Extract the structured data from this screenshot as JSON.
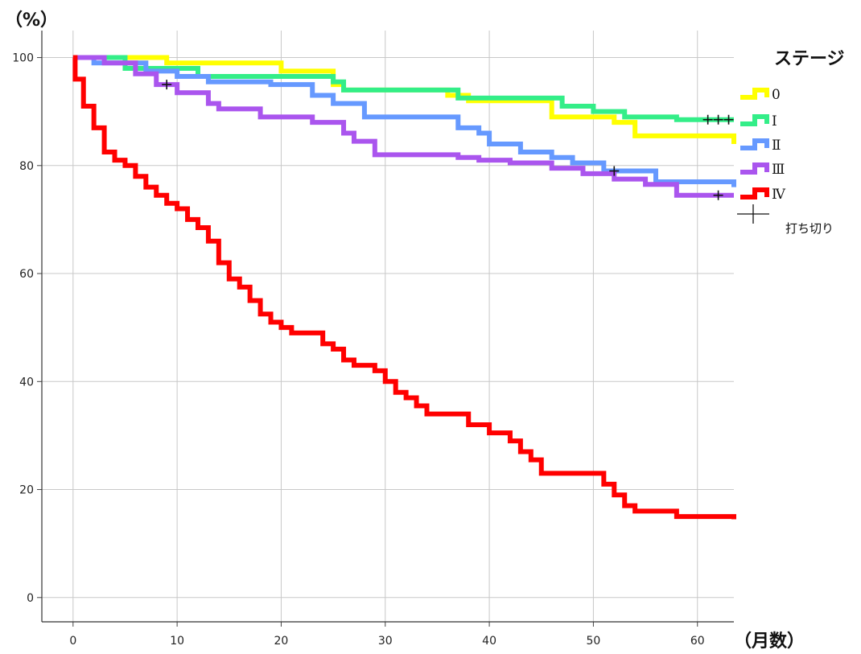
{
  "chart_data": {
    "type": "line",
    "step": true,
    "y_unit_label": "（%）",
    "x_unit_label": "（月数）",
    "xlim": [
      -3,
      63.5
    ],
    "ylim": [
      -4.5,
      105
    ],
    "x_ticks": [
      "0",
      "10",
      "20",
      "30",
      "40",
      "50",
      "60"
    ],
    "y_ticks": [
      "0",
      "20",
      "40",
      "60",
      "80",
      "100"
    ],
    "grid": true,
    "legend": {
      "title": "ステージ",
      "position": "right",
      "censor_label": "打ち切り"
    },
    "series": [
      {
        "name": "0",
        "color": "#ffff00",
        "points": [
          [
            0,
            100
          ],
          [
            9,
            99
          ],
          [
            20,
            97.5
          ],
          [
            25,
            95
          ],
          [
            26,
            94
          ],
          [
            36,
            93
          ],
          [
            38,
            92
          ],
          [
            46,
            89
          ],
          [
            52,
            88
          ],
          [
            54,
            85.5
          ],
          [
            63.5,
            84
          ]
        ],
        "censored": []
      },
      {
        "name": "Ⅰ",
        "color": "#33ee88",
        "points": [
          [
            0,
            100
          ],
          [
            5,
            98
          ],
          [
            12,
            96.5
          ],
          [
            25,
            95.5
          ],
          [
            26,
            94
          ],
          [
            37,
            92.5
          ],
          [
            47,
            91
          ],
          [
            50,
            90
          ],
          [
            53,
            89
          ],
          [
            58,
            88.5
          ],
          [
            63.5,
            88.5
          ]
        ],
        "censored": [
          [
            61,
            88.5
          ],
          [
            62,
            88.5
          ],
          [
            63,
            88.5
          ]
        ]
      },
      {
        "name": "Ⅱ",
        "color": "#6699ff",
        "points": [
          [
            0,
            100
          ],
          [
            2,
            99
          ],
          [
            7,
            97.5
          ],
          [
            10,
            96.5
          ],
          [
            13,
            95.5
          ],
          [
            19,
            95
          ],
          [
            23,
            93
          ],
          [
            25,
            91.5
          ],
          [
            28,
            89
          ],
          [
            37,
            87
          ],
          [
            39,
            86
          ],
          [
            40,
            84
          ],
          [
            43,
            82.5
          ],
          [
            46,
            81.5
          ],
          [
            48,
            80.5
          ],
          [
            51,
            79
          ],
          [
            56,
            77
          ],
          [
            63.5,
            76
          ]
        ],
        "censored": [
          [
            52,
            79
          ]
        ]
      },
      {
        "name": "Ⅲ",
        "color": "#aa55ee",
        "points": [
          [
            0,
            100
          ],
          [
            3,
            99
          ],
          [
            6,
            97
          ],
          [
            8,
            95
          ],
          [
            10,
            93.5
          ],
          [
            13,
            91.5
          ],
          [
            14,
            90.5
          ],
          [
            18,
            89
          ],
          [
            23,
            88
          ],
          [
            26,
            86
          ],
          [
            27,
            84.5
          ],
          [
            29,
            82
          ],
          [
            37,
            81.5
          ],
          [
            39,
            81
          ],
          [
            42,
            80.5
          ],
          [
            46,
            79.5
          ],
          [
            49,
            78.5
          ],
          [
            52,
            77.5
          ],
          [
            55,
            76.5
          ],
          [
            58,
            74.5
          ],
          [
            63.5,
            74.5
          ]
        ],
        "censored": [
          [
            9,
            95
          ],
          [
            62,
            74.5
          ]
        ]
      },
      {
        "name": "Ⅳ",
        "color": "#ff0000",
        "points": [
          [
            0,
            100
          ],
          [
            0.2,
            96
          ],
          [
            1,
            91
          ],
          [
            2,
            87
          ],
          [
            3,
            82.5
          ],
          [
            4,
            81
          ],
          [
            5,
            80
          ],
          [
            6,
            78
          ],
          [
            7,
            76
          ],
          [
            8,
            74.5
          ],
          [
            9,
            73
          ],
          [
            10,
            72
          ],
          [
            11,
            70
          ],
          [
            12,
            68.5
          ],
          [
            13,
            66
          ],
          [
            14,
            62
          ],
          [
            15,
            59
          ],
          [
            16,
            57.5
          ],
          [
            17,
            55
          ],
          [
            18,
            52.5
          ],
          [
            19,
            51
          ],
          [
            20,
            50
          ],
          [
            21,
            49
          ],
          [
            24,
            47
          ],
          [
            25,
            46
          ],
          [
            26,
            44
          ],
          [
            27,
            43
          ],
          [
            29,
            42
          ],
          [
            30,
            40
          ],
          [
            31,
            38
          ],
          [
            32,
            37
          ],
          [
            33,
            35.5
          ],
          [
            34,
            34
          ],
          [
            38,
            32
          ],
          [
            40,
            30.5
          ],
          [
            42,
            29
          ],
          [
            43,
            27
          ],
          [
            44,
            25.5
          ],
          [
            45,
            23
          ],
          [
            51,
            21
          ],
          [
            52,
            19
          ],
          [
            53,
            17
          ],
          [
            54,
            16
          ],
          [
            58,
            15
          ],
          [
            63.5,
            14.5
          ]
        ],
        "censored": []
      }
    ]
  }
}
